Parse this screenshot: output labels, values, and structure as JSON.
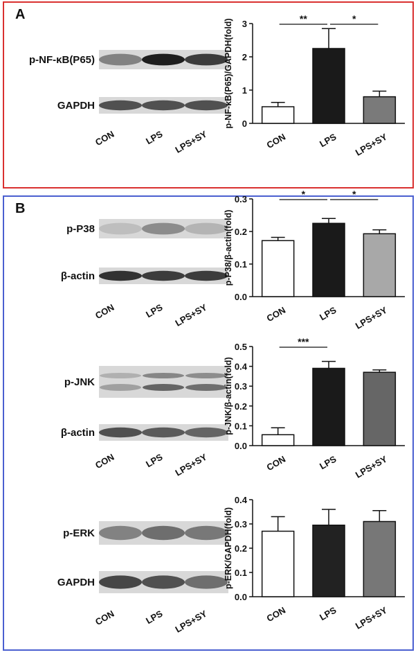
{
  "panels": [
    {
      "label": "A"
    },
    {
      "label": "B"
    }
  ],
  "blots": [
    {
      "rows": [
        "p-NF-κB(P65)",
        "GAPDH"
      ],
      "lanes": [
        "CON",
        "LPS",
        "LPS+SY"
      ]
    },
    {
      "rows": [
        "p-P38",
        "β-actin"
      ],
      "lanes": [
        "CON",
        "LPS",
        "LPS+SY"
      ]
    },
    {
      "rows": [
        "p-JNK",
        "β-actin"
      ],
      "lanes": [
        "CON",
        "LPS",
        "LPS+SY"
      ]
    },
    {
      "rows": [
        "p-ERK",
        "GAPDH"
      ],
      "lanes": [
        "CON",
        "LPS",
        "LPS+SY"
      ]
    }
  ],
  "chart_data": [
    {
      "type": "bar",
      "ylabel": "p-NF-κB(P65)/GAPDH(fold)",
      "categories": [
        "CON",
        "LPS",
        "LPS+SY"
      ],
      "values": [
        0.5,
        2.25,
        0.8
      ],
      "errors": [
        0.13,
        0.6,
        0.17
      ],
      "colors": [
        "#ffffff",
        "#1a1a1a",
        "#7a7a7a"
      ],
      "ylim": [
        0,
        3
      ],
      "yticks": [
        0,
        1,
        2,
        3
      ],
      "significance": [
        "**",
        "*"
      ]
    },
    {
      "type": "bar",
      "ylabel": "p-P38/β-actin(fold)",
      "categories": [
        "CON",
        "LPS",
        "LPS+SY"
      ],
      "values": [
        0.172,
        0.225,
        0.193
      ],
      "errors": [
        0.01,
        0.015,
        0.012
      ],
      "colors": [
        "#ffffff",
        "#1a1a1a",
        "#a8a8a8"
      ],
      "ylim": [
        0,
        0.3
      ],
      "yticks": [
        {
          "value": 0,
          "label": "0.0"
        },
        0.1,
        0.2,
        0.3
      ],
      "significance": [
        "*",
        "*"
      ]
    },
    {
      "type": "bar",
      "ylabel": "p-JNK/β-actin(fold)",
      "categories": [
        "CON",
        "LPS",
        "LPS+SY"
      ],
      "values": [
        0.055,
        0.39,
        0.37
      ],
      "errors": [
        0.035,
        0.035,
        0.012
      ],
      "colors": [
        "#ffffff",
        "#1a1a1a",
        "#666666"
      ],
      "ylim": [
        0,
        0.5
      ],
      "yticks": [
        {
          "value": 0,
          "label": "0.0"
        },
        0.1,
        0.2,
        0.3,
        0.4,
        0.5
      ],
      "significance": [
        "***"
      ]
    },
    {
      "type": "bar",
      "ylabel": "p-ERK/GAPDH(fold)",
      "categories": [
        "CON",
        "LPS",
        "LPS+SY"
      ],
      "values": [
        0.27,
        0.295,
        0.31
      ],
      "errors": [
        0.06,
        0.065,
        0.045
      ],
      "colors": [
        "#ffffff",
        "#222222",
        "#777777"
      ],
      "ylim": [
        0,
        0.4
      ],
      "yticks": [
        {
          "value": 0,
          "label": "0.0"
        },
        0.1,
        0.2,
        0.3,
        0.4
      ]
    }
  ]
}
